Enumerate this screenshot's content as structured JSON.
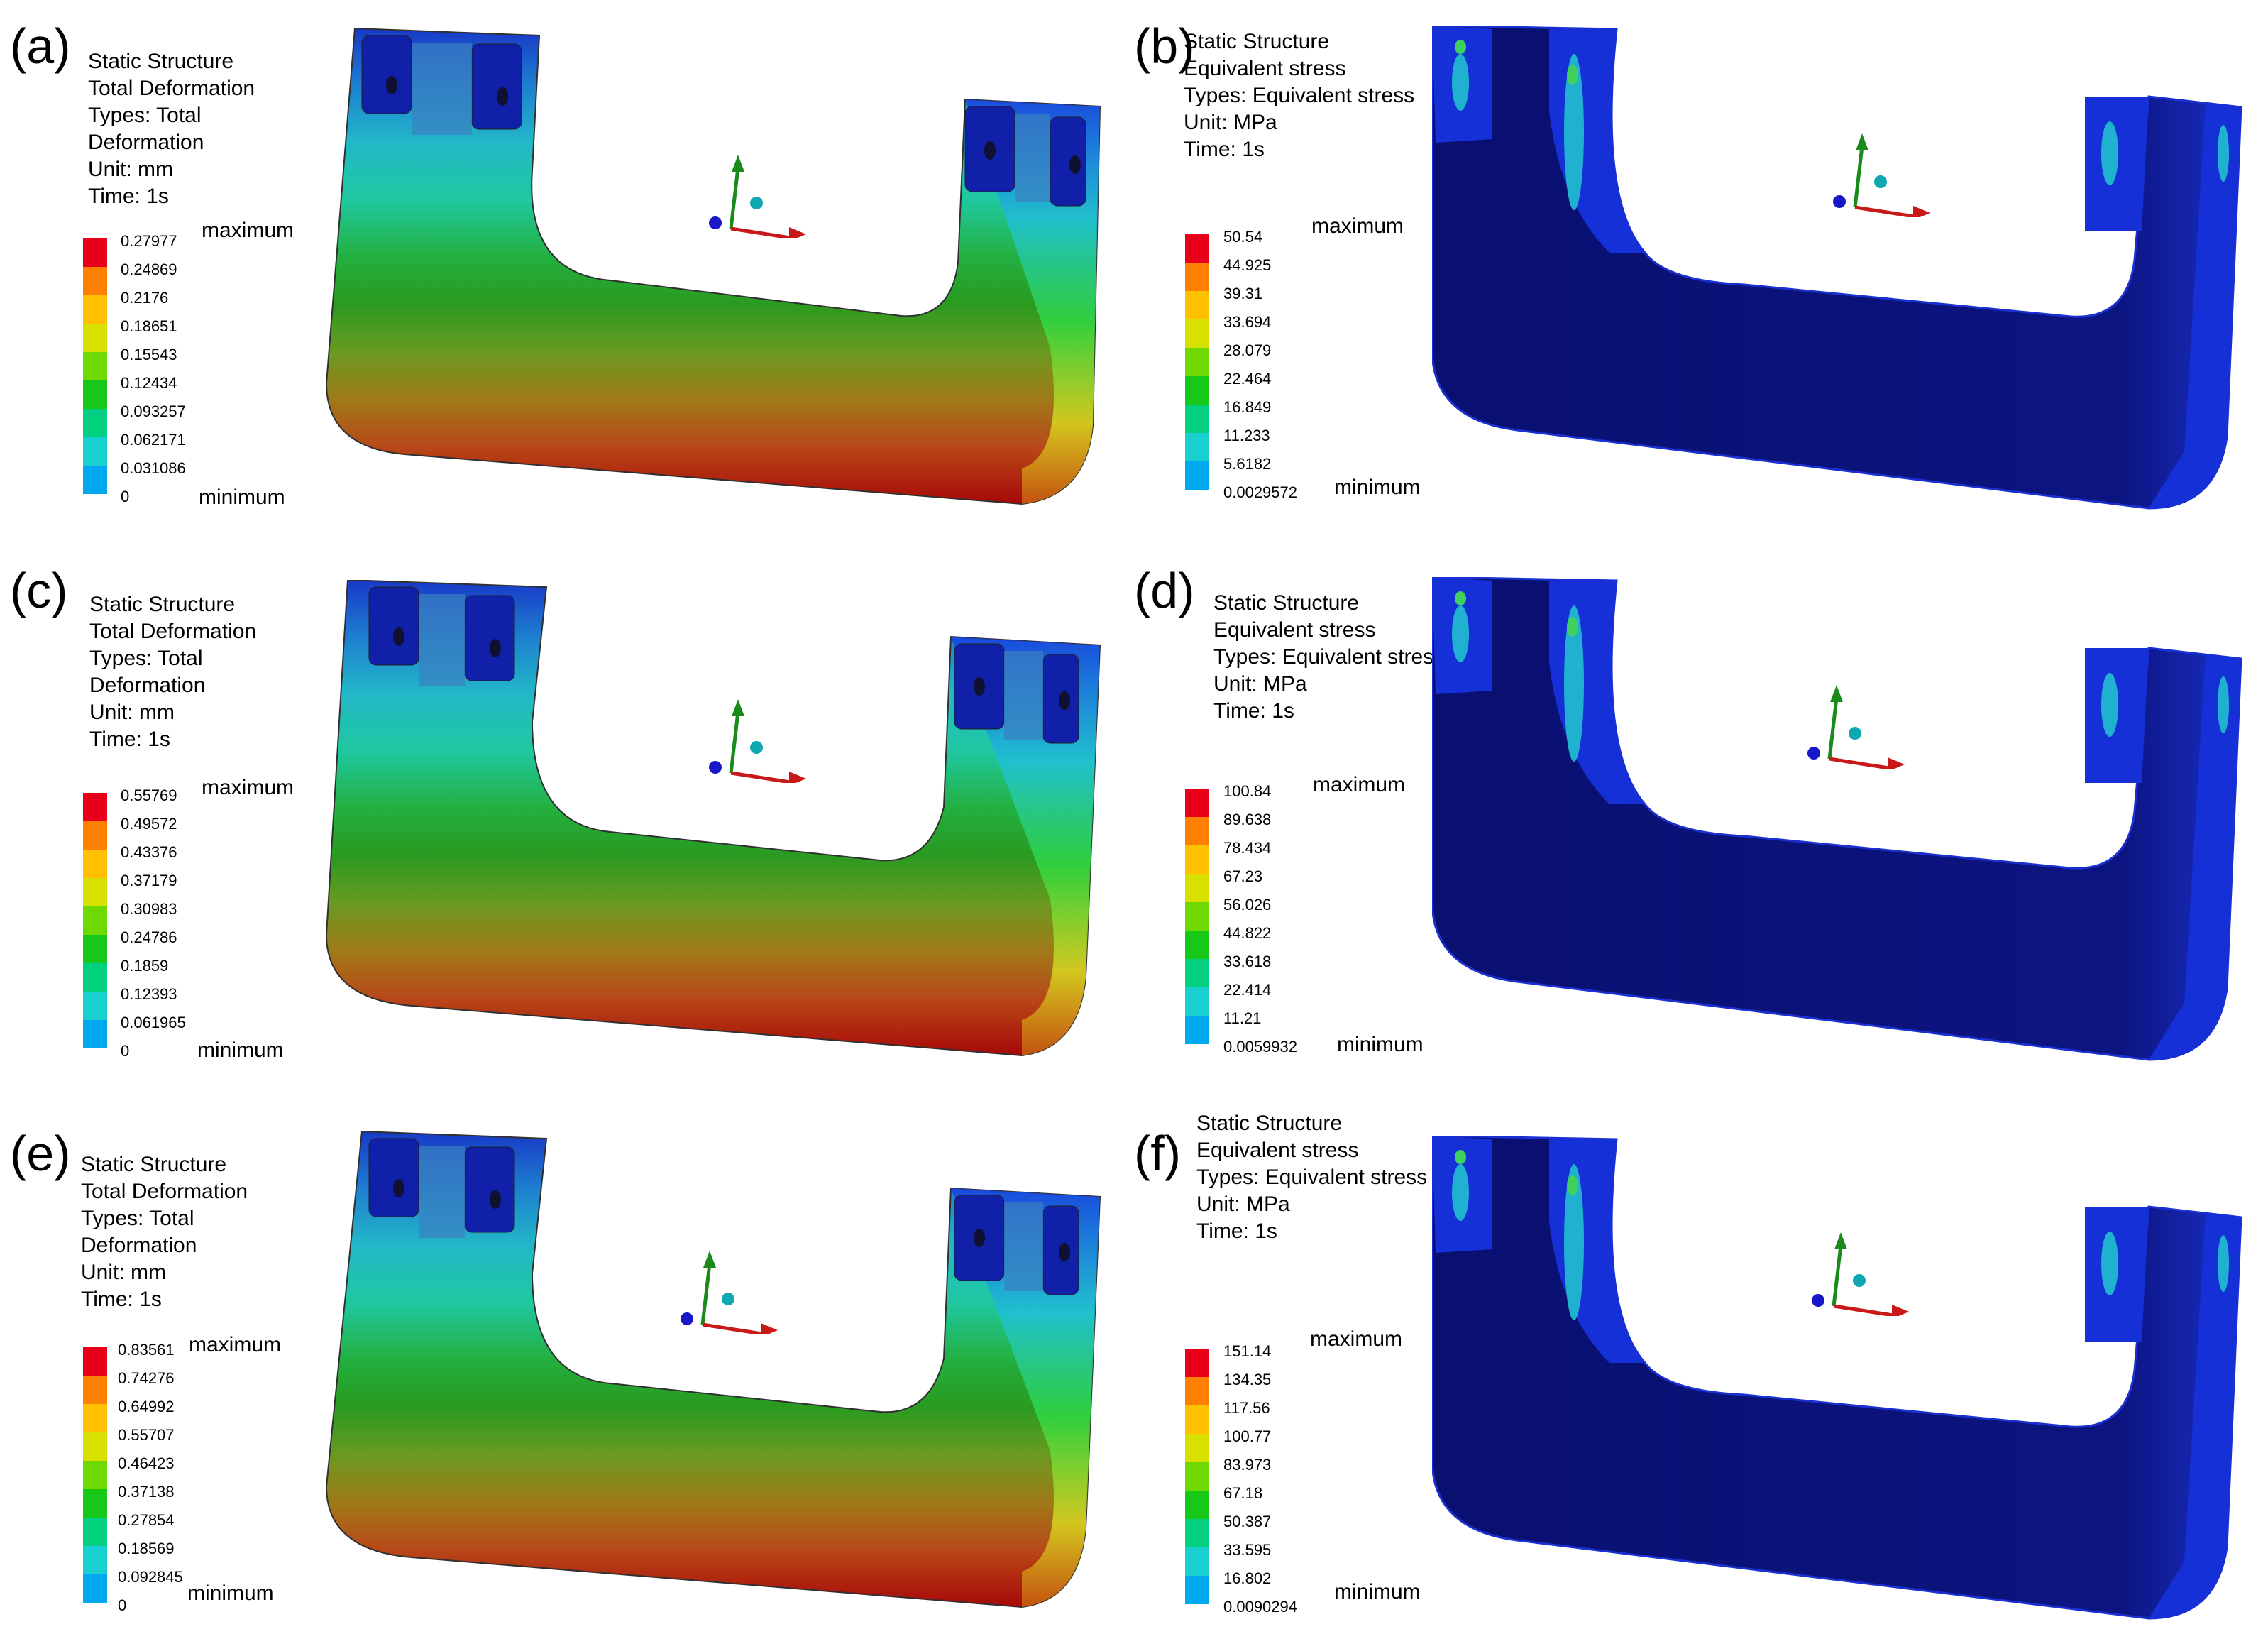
{
  "colors": {
    "legend": [
      "#e8001a",
      "#ff8000",
      "#ffc000",
      "#d8e000",
      "#6fd800",
      "#18c818",
      "#00d080",
      "#18d0d0",
      "#00a8f0",
      "#2060ff",
      "#0000d8"
    ],
    "model_dark": "#0a1274",
    "model_mid": "#1a32d8"
  },
  "panels": [
    {
      "label": "(a)",
      "info": [
        "Static Structure",
        "Total Deformation",
        "Types: Total",
        "Deformation",
        "Unit: mm",
        "Time: 1s"
      ],
      "max_label": "maximum",
      "min_label": "minimum",
      "ticks": [
        "0.27977",
        "0.24869",
        "0.2176",
        "0.18651",
        "0.15543",
        "0.12434",
        "0.093257",
        "0.062171",
        "0.031086",
        "0"
      ]
    },
    {
      "label": "(b)",
      "info": [
        "Static Structure",
        "Equivalent stress",
        "Types: Equivalent stress",
        "Unit: MPa",
        "Time: 1s"
      ],
      "max_label": "maximum",
      "min_label": "minimum",
      "ticks": [
        "50.54",
        "44.925",
        "39.31",
        "33.694",
        "28.079",
        "22.464",
        "16.849",
        "11.233",
        "5.6182",
        "0.0029572"
      ]
    },
    {
      "label": "(c)",
      "info": [
        "Static Structure",
        "Total Deformation",
        "Types: Total",
        "Deformation",
        "Unit: mm",
        "Time: 1s"
      ],
      "max_label": "maximum",
      "min_label": "minimum",
      "ticks": [
        "0.55769",
        "0.49572",
        "0.43376",
        "0.37179",
        "0.30983",
        "0.24786",
        "0.1859",
        "0.12393",
        "0.061965",
        "0"
      ]
    },
    {
      "label": "(d)",
      "info": [
        "Static Structure",
        "Equivalent stress",
        "Types: Equivalent stress",
        "Unit: MPa",
        "Time: 1s"
      ],
      "max_label": "maximum",
      "min_label": "minimum",
      "ticks": [
        "100.84",
        "89.638",
        "78.434",
        "67.23",
        "56.026",
        "44.822",
        "33.618",
        "22.414",
        "11.21",
        "0.0059932"
      ]
    },
    {
      "label": "(e)",
      "info": [
        "Static Structure",
        "Total Deformation",
        "Types: Total",
        "Deformation",
        "Unit: mm",
        "Time: 1s"
      ],
      "max_label": "maximum",
      "min_label": "minimum",
      "ticks": [
        "0.83561",
        "0.74276",
        "0.64992",
        "0.55707",
        "0.46423",
        "0.37138",
        "0.27854",
        "0.18569",
        "0.092845",
        "0"
      ]
    },
    {
      "label": "(f)",
      "info": [
        "Static Structure",
        "Equivalent stress",
        "Types: Equivalent stress",
        "Unit: MPa",
        "Time: 1s"
      ],
      "max_label": "maximum",
      "min_label": "minimum",
      "ticks": [
        "151.14",
        "134.35",
        "117.56",
        "100.77",
        "83.973",
        "67.18",
        "50.387",
        "33.595",
        "16.802",
        "0.0090294"
      ]
    }
  ]
}
